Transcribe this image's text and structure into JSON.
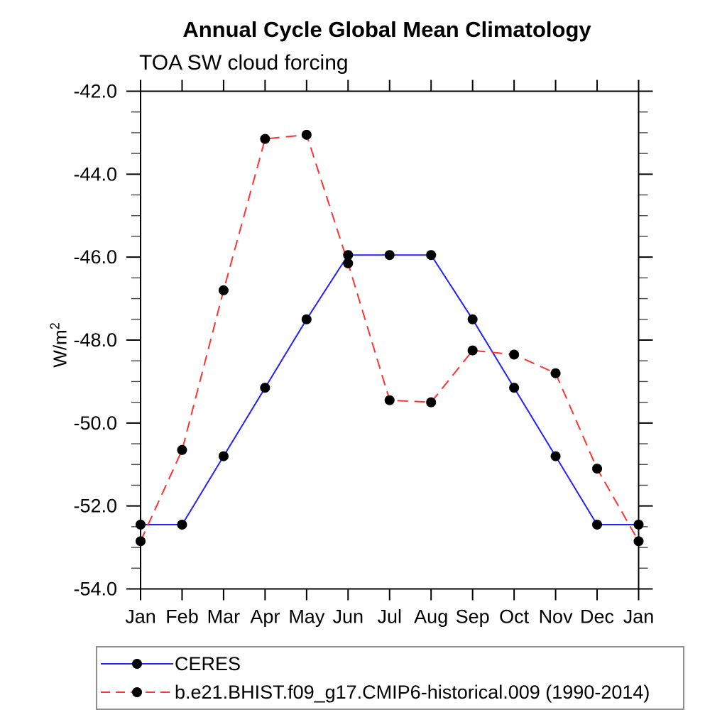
{
  "chart_data": {
    "type": "line",
    "title": "Annual Cycle Global Mean Climatology",
    "subtitle": "TOA SW cloud forcing",
    "ylabel": {
      "base": "W/m",
      "sup": "2"
    },
    "ylabel_text": "W/m2",
    "x_categories": [
      "Jan",
      "Feb",
      "Mar",
      "Apr",
      "May",
      "Jun",
      "Jul",
      "Aug",
      "Sep",
      "Oct",
      "Nov",
      "Dec",
      "Jan"
    ],
    "ylim": [
      -54.0,
      -42.0
    ],
    "y_major_ticks": [
      -42.0,
      -44.0,
      -46.0,
      -48.0,
      -50.0,
      -52.0,
      -54.0
    ],
    "y_tick_labels": [
      "-42.0",
      "-44.0",
      "-46.0",
      "-48.0",
      "-50.0",
      "-52.0",
      "-54.0"
    ],
    "y_minor_step": 0.5,
    "grid": false,
    "legend_position": "bottom-left-box",
    "axis_color": "#000000",
    "marker_color": "#000000",
    "series": [
      {
        "name": "CERES",
        "color": "#2222ff",
        "line_style": "solid",
        "marker": "filled-black-circle",
        "values": [
          -52.45,
          -52.45,
          -50.8,
          -49.15,
          -47.5,
          -45.95,
          -45.95,
          -45.95,
          -47.5,
          -49.15,
          -50.8,
          -52.45,
          -52.45
        ]
      },
      {
        "name": "b.e21.BHIST.f09_g17.CMIP6-historical.009 (1990-2014)",
        "color": "#ff3333",
        "line_style": "dashed",
        "marker": "filled-black-circle",
        "values": [
          -52.85,
          -50.65,
          -46.8,
          -43.15,
          -43.05,
          -46.15,
          -49.45,
          -49.5,
          -48.25,
          -48.35,
          -48.8,
          -51.1,
          -52.85
        ]
      }
    ]
  }
}
